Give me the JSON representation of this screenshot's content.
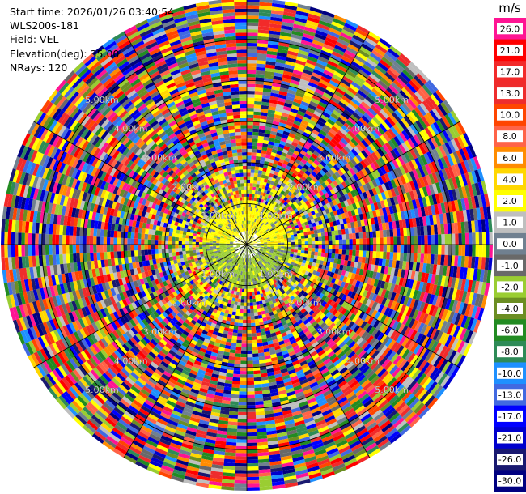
{
  "info": {
    "start_time": "Start time: 2026/01/26 03:40:54",
    "instrument": "WLS200s-181",
    "field": "Field: VEL",
    "elevation": "Elevation(deg): 35.00",
    "nrays": "NRays: 120"
  },
  "colorbar": {
    "unit": "m/s",
    "labels": [
      "26.0",
      "21.0",
      "17.0",
      "13.0",
      "10.0",
      "8.0",
      "6.0",
      "4.0",
      "2.0",
      "1.0",
      "0.0",
      "-1.0",
      "-2.0",
      "-4.0",
      "-6.0",
      "-8.0",
      "-10.0",
      "-13.0",
      "-17.0",
      "-21.0",
      "-26.0",
      "-30.0"
    ],
    "colors": [
      "#ff1493",
      "#ff0000",
      "#f22a2a",
      "#ee2c2c",
      "#ff4500",
      "#ff6347",
      "#ff8c00",
      "#ffd700",
      "#ffff00",
      "#bfbfbf",
      "#708090",
      "#696969",
      "#9acd32",
      "#6b8e23",
      "#228b22",
      "#2e8b57",
      "#1e90ff",
      "#4169e1",
      "#0000ff",
      "#0000cd",
      "#191970",
      "#000080"
    ]
  },
  "chart_data": {
    "type": "heatmap",
    "projection": "polar",
    "field": "VEL",
    "units": "m/s",
    "nrays": 120,
    "elevation_deg": 35.0,
    "range_km_max": 6.0,
    "ring_labels": [
      "1.00km",
      "2.00km",
      "3.00km",
      "4.00km",
      "5.00km"
    ]
  }
}
